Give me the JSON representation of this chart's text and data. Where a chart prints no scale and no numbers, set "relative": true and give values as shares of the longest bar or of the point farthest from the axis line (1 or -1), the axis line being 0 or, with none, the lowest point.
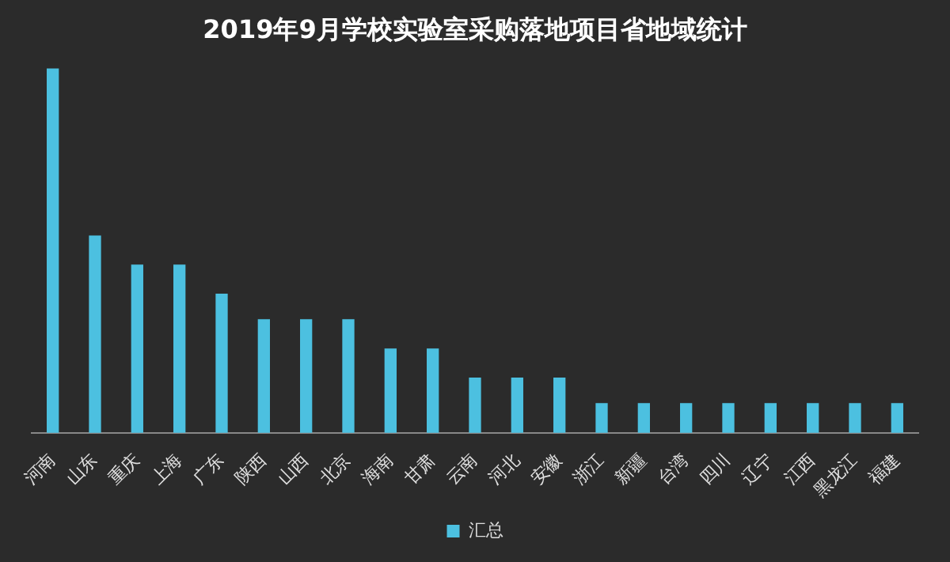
{
  "chart_data": {
    "type": "bar",
    "title": "2019年9月学校实验室采购落地项目省地域统计",
    "relative": true,
    "legend": "bottom",
    "categories": [
      "河南",
      "山东",
      "重庆",
      "上海",
      "广东",
      "陕西",
      "山西",
      "北京",
      "海南",
      "甘肃",
      "云南",
      "河北",
      "安徽",
      "浙江",
      "新疆",
      "台湾",
      "四川",
      "辽宁",
      "江西",
      "黑龙江",
      "福建"
    ],
    "series": [
      {
        "name": "汇总",
        "color": "#4cc0e0",
        "values": [
          1,
          0.54,
          0.46,
          0.46,
          0.38,
          0.31,
          0.31,
          0.31,
          0.23,
          0.23,
          0.15,
          0.15,
          0.15,
          0.08,
          0.08,
          0.08,
          0.08,
          0.08,
          0.08,
          0.08,
          0.08
        ]
      }
    ]
  }
}
